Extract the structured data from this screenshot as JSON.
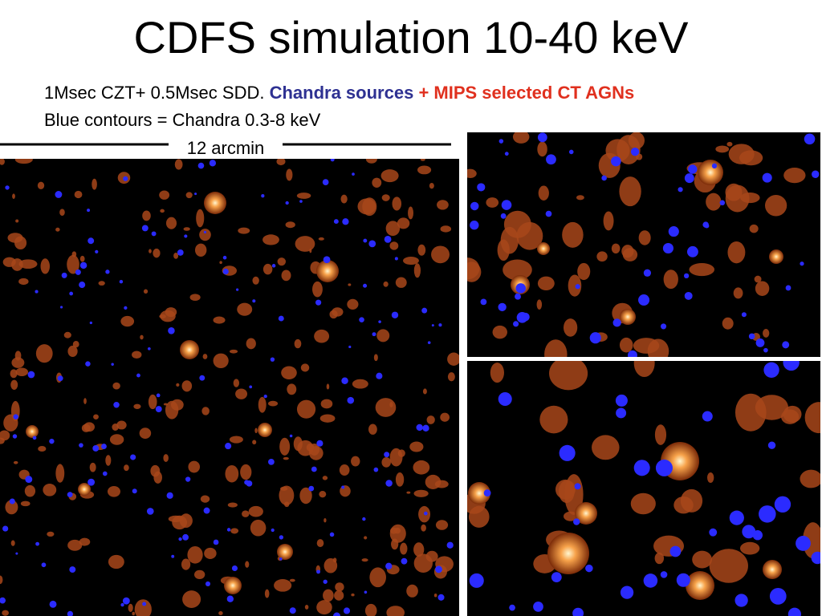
{
  "header": {
    "title": "CDFS simulation 10-40 keV"
  },
  "caption": {
    "line1": {
      "plain": "1Msec CZT+ 0.5Msec SDD.",
      "chandra": "Chandra sources",
      "mips": "+ MIPS selected CT AGNs"
    },
    "line2": "Blue contours = Chandra 0.3-8 keV"
  },
  "scale_bar": {
    "label": "12 arcmin"
  }
}
